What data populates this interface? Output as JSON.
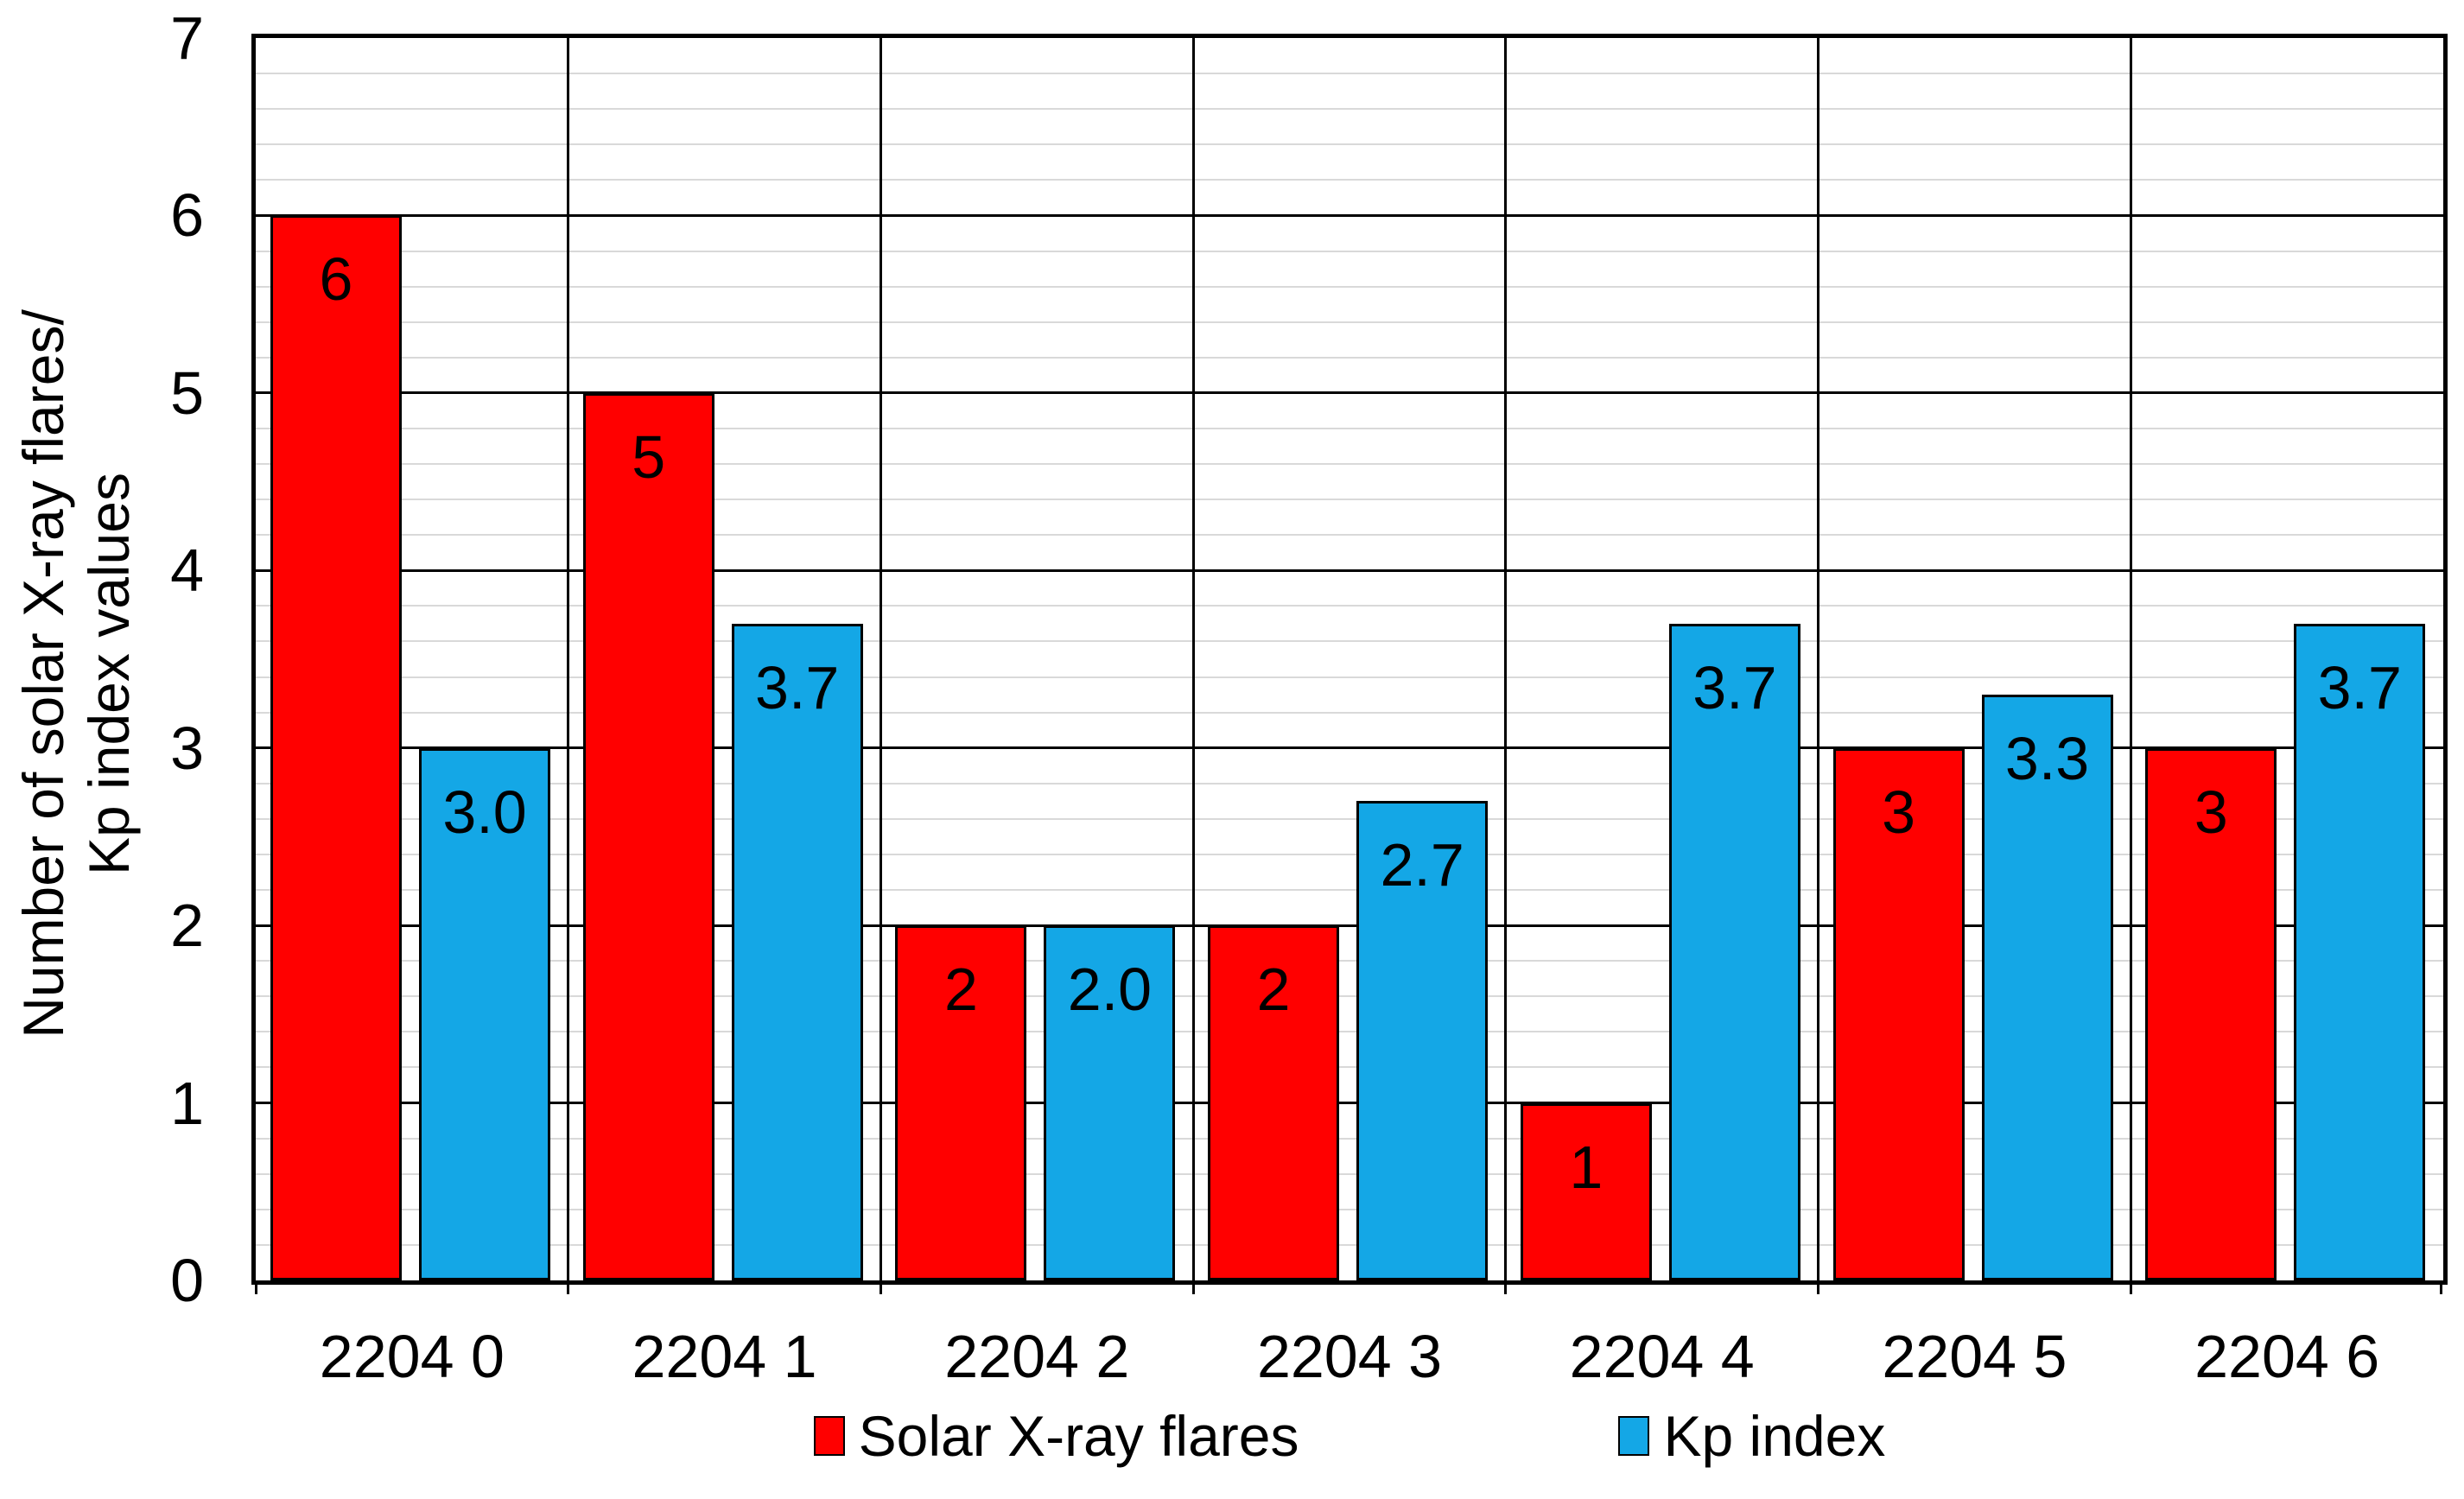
{
  "chart_data": {
    "type": "bar",
    "title": "",
    "categories": [
      "2204 0",
      "2204 1",
      "2204 2",
      "2204 3",
      "2204 4",
      "2204 5",
      "2204 6"
    ],
    "series": [
      {
        "name": "Solar X-ray flares",
        "color": "#FF0000",
        "values": [
          6,
          5,
          2,
          2,
          1,
          3,
          3
        ],
        "labels": [
          "6",
          "5",
          "2",
          "2",
          "1",
          "3",
          "3"
        ]
      },
      {
        "name": "Kp index",
        "color": "#14A7E6",
        "values": [
          3.0,
          3.7,
          2.0,
          2.7,
          3.7,
          3.3,
          3.7
        ],
        "labels": [
          "3.0",
          "3.7",
          "2.0",
          "2.7",
          "3.7",
          "3.3",
          "3.7"
        ]
      }
    ],
    "ylabel_line1": "Number of solar X-ray flares/",
    "ylabel_line2": "Kp index values",
    "xlabel": "",
    "ylim": [
      0,
      7
    ],
    "y_ticks": [
      "0",
      "1",
      "2",
      "3",
      "4",
      "5",
      "6",
      "7"
    ],
    "y_major_unit": 1,
    "y_minor_unit": 0.2,
    "grid": {
      "major_horizontal": true,
      "minor_horizontal": true,
      "vertical_category_separators": true
    },
    "legend_position": "bottom",
    "bar_outline_color": "#000000",
    "axis_color": "#000000",
    "major_grid_color": "#000000",
    "minor_grid_color": "#D9D9D9",
    "label_color": "#000000"
  }
}
